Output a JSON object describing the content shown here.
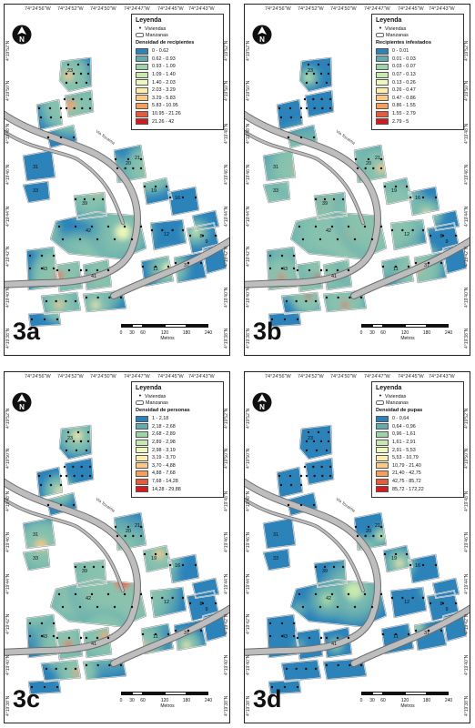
{
  "coords_top": [
    "74°24'56\"W",
    "74°24'52\"W",
    "74°24'50\"W",
    "74°24'47\"W",
    "74°24'45\"W",
    "74°24'43\"W"
  ],
  "coords_left": [
    "4°19'52\"N",
    "4°19'50\"N",
    "4°19'48\"N",
    "4°19'46\"N",
    "4°19'44\"N",
    "4°19'42\"N",
    "4°19'40\"N",
    "4°19'38\"N"
  ],
  "coords_right": [
    "4°19'52\"N",
    "4°19'50\"N",
    "4°19'48\"N",
    "4°19'46\"N",
    "4°19'44\"N",
    "4°19'42\"N",
    "4°19'40\"N",
    "4°19'38\"N"
  ],
  "legend_title": "Leyenda",
  "viviendas_label": "Viviendas",
  "manzanas_label": "Manzanas",
  "scale": {
    "ticks": [
      "0",
      "30",
      "60",
      "120",
      "180",
      "240"
    ],
    "unit": "Metros"
  },
  "road_label": "Via Tocaima",
  "block_numbers": [
    "23",
    "31",
    "33",
    "39",
    "42",
    "43",
    "41",
    "11",
    "12",
    "37",
    "8",
    "9",
    "16",
    "19",
    "20",
    "21"
  ],
  "panels": [
    {
      "label": "3a",
      "subtitle": "Densidad de recipientes",
      "classes": [
        {
          "range": "0 - 0.62",
          "color": "#2b83ba"
        },
        {
          "range": "0.62 - 0.93",
          "color": "#64abb0"
        },
        {
          "range": "0.93 - 1.09",
          "color": "#9dd3a7"
        },
        {
          "range": "1.09 - 1.40",
          "color": "#c7e9ad"
        },
        {
          "range": "1.40 - 2.03",
          "color": "#edf8b9"
        },
        {
          "range": "2.03 - 3.29",
          "color": "#ffedaa"
        },
        {
          "range": "3.29 - 5.83",
          "color": "#fec980"
        },
        {
          "range": "5.83 - 10.95",
          "color": "#f99e59"
        },
        {
          "range": "10.95 - 21.26",
          "color": "#e85b3a"
        },
        {
          "range": "21.26 - 42",
          "color": "#d7191c"
        }
      ]
    },
    {
      "label": "3b",
      "subtitle": "Recipientes infestados",
      "classes": [
        {
          "range": "0 - 0.01",
          "color": "#2b83ba"
        },
        {
          "range": "0.01 - 0.03",
          "color": "#64abb0"
        },
        {
          "range": "0.03 - 0.07",
          "color": "#9dd3a7"
        },
        {
          "range": "0.07 - 0.13",
          "color": "#c7e9ad"
        },
        {
          "range": "0.13 - 0.26",
          "color": "#edf8b9"
        },
        {
          "range": "0.26 - 0.47",
          "color": "#ffedaa"
        },
        {
          "range": "0.47 - 0.86",
          "color": "#fec980"
        },
        {
          "range": "0.86 - 1.55",
          "color": "#f99e59"
        },
        {
          "range": "1.55 - 2.79",
          "color": "#e85b3a"
        },
        {
          "range": "2.79 - 5",
          "color": "#d7191c"
        }
      ]
    },
    {
      "label": "3c",
      "subtitle": "Densidad de personas",
      "classes": [
        {
          "range": "1 - 2,18",
          "color": "#2b83ba"
        },
        {
          "range": "2,18 - 2,68",
          "color": "#64abb0"
        },
        {
          "range": "2,68 - 2,89",
          "color": "#9dd3a7"
        },
        {
          "range": "2,89 - 2,98",
          "color": "#c7e9ad"
        },
        {
          "range": "2,98 - 3,19",
          "color": "#edf8b9"
        },
        {
          "range": "3,19 - 3,70",
          "color": "#ffedaa"
        },
        {
          "range": "3,70 - 4,88",
          "color": "#fec980"
        },
        {
          "range": "4,88 - 7,68",
          "color": "#f99e59"
        },
        {
          "range": "7,68 - 14,28",
          "color": "#e85b3a"
        },
        {
          "range": "14,28 - 29,88",
          "color": "#d7191c"
        }
      ]
    },
    {
      "label": "3d",
      "subtitle": "Densidad de pupas",
      "classes": [
        {
          "range": "0 - 0,64",
          "color": "#2b83ba"
        },
        {
          "range": "0,64 - 0,96",
          "color": "#64abb0"
        },
        {
          "range": "0,96 - 1,61",
          "color": "#9dd3a7"
        },
        {
          "range": "1,61 - 2,91",
          "color": "#c7e9ad"
        },
        {
          "range": "2,91 - 5,53",
          "color": "#edf8b9"
        },
        {
          "range": "5,53 - 10,79",
          "color": "#ffedaa"
        },
        {
          "range": "10,79 - 21,40",
          "color": "#fec980"
        },
        {
          "range": "21,40 - 42,75",
          "color": "#f99e59"
        },
        {
          "range": "42,75 - 85,72",
          "color": "#e85b3a"
        },
        {
          "range": "85,72 - 172,22",
          "color": "#d7191c"
        }
      ]
    }
  ]
}
